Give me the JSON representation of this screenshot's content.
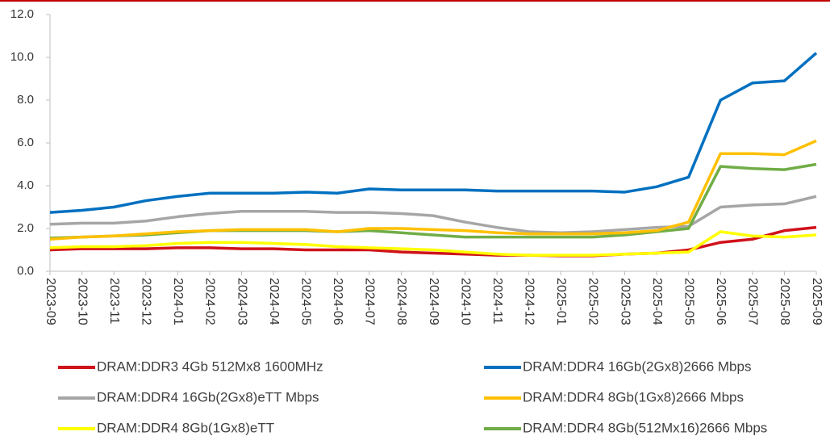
{
  "chart_data": {
    "type": "line",
    "categories": [
      "2023-09",
      "2023-10",
      "2023-11",
      "2023-12",
      "2024-01",
      "2024-02",
      "2024-03",
      "2024-04",
      "2024-05",
      "2024-06",
      "2024-07",
      "2024-08",
      "2024-09",
      "2024-10",
      "2024-11",
      "2024-12",
      "2025-01",
      "2025-02",
      "2025-03",
      "2025-04",
      "2025-05",
      "2025-06",
      "2025-07",
      "2025-08",
      "2025-09"
    ],
    "series": [
      {
        "name": "DRAM:DDR3 4Gb 512Mx8 1600MHz",
        "color": "#d0121b",
        "values": [
          1.0,
          1.05,
          1.05,
          1.05,
          1.1,
          1.1,
          1.05,
          1.05,
          1.0,
          1.0,
          1.0,
          0.9,
          0.85,
          0.8,
          0.75,
          0.75,
          0.72,
          0.72,
          0.8,
          0.85,
          1.0,
          1.35,
          1.5,
          1.9,
          2.05
        ]
      },
      {
        "name": "DRAM:DDR4 16Gb(2Gx8)2666 Mbps",
        "color": "#0070c0",
        "values": [
          2.75,
          2.85,
          3.0,
          3.3,
          3.5,
          3.65,
          3.65,
          3.65,
          3.7,
          3.65,
          3.85,
          3.8,
          3.8,
          3.8,
          3.75,
          3.75,
          3.75,
          3.75,
          3.7,
          3.95,
          4.4,
          8.0,
          8.8,
          8.9,
          10.2
        ]
      },
      {
        "name": "DRAM:DDR4 16Gb(2Gx8)eTT Mbps",
        "color": "#a6a6a6",
        "values": [
          2.2,
          2.25,
          2.25,
          2.35,
          2.55,
          2.7,
          2.8,
          2.8,
          2.8,
          2.75,
          2.75,
          2.7,
          2.6,
          2.3,
          2.05,
          1.85,
          1.8,
          1.85,
          1.95,
          2.05,
          2.1,
          3.0,
          3.1,
          3.15,
          3.5
        ]
      },
      {
        "name": "DRAM:DDR4 8Gb(1Gx8)2666 Mbps",
        "color": "#ffc000",
        "values": [
          1.5,
          1.6,
          1.65,
          1.75,
          1.85,
          1.9,
          1.95,
          1.95,
          1.95,
          1.85,
          2.0,
          2.0,
          1.95,
          1.9,
          1.8,
          1.75,
          1.75,
          1.75,
          1.8,
          1.9,
          2.3,
          5.5,
          5.5,
          5.45,
          6.1
        ]
      },
      {
        "name": "DRAM:DDR4 8Gb(1Gx8)eTT",
        "color": "#ffff00",
        "values": [
          1.1,
          1.15,
          1.15,
          1.2,
          1.3,
          1.35,
          1.35,
          1.3,
          1.25,
          1.15,
          1.1,
          1.05,
          1.0,
          0.9,
          0.8,
          0.75,
          0.75,
          0.75,
          0.8,
          0.85,
          0.9,
          1.85,
          1.65,
          1.6,
          1.7
        ]
      },
      {
        "name": "DRAM:DDR4 8Gb(512Mx16)2666 Mbps",
        "color": "#70ad47",
        "values": [
          1.55,
          1.6,
          1.65,
          1.7,
          1.8,
          1.9,
          1.9,
          1.9,
          1.9,
          1.85,
          1.9,
          1.8,
          1.7,
          1.6,
          1.6,
          1.6,
          1.6,
          1.6,
          1.7,
          1.85,
          2.0,
          4.9,
          4.8,
          4.75,
          5.0
        ]
      }
    ],
    "ylim": [
      0,
      12
    ],
    "yticks": [
      {
        "value": 0,
        "label": "0.0"
      },
      {
        "value": 2,
        "label": "2.0"
      },
      {
        "value": 4,
        "label": "4.0"
      },
      {
        "value": 6,
        "label": "6.0"
      },
      {
        "value": 8,
        "label": "8.0"
      },
      {
        "value": 10,
        "label": "10.0"
      },
      {
        "value": 12,
        "label": "12.0"
      }
    ],
    "grid": false
  }
}
